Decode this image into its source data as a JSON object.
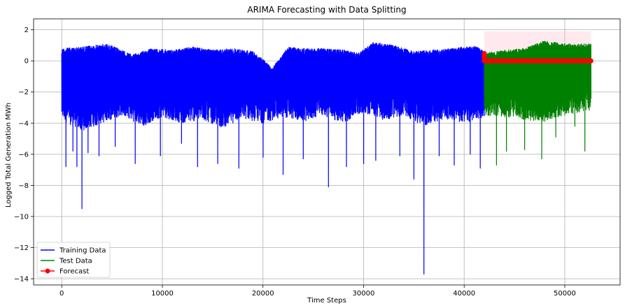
{
  "chart_data": {
    "type": "line",
    "title": "ARIMA Forecasting with Data Splitting",
    "xlabel": "Time Steps",
    "ylabel": "Logged Total Generation MWh",
    "xlim": [
      -2800,
      55500
    ],
    "ylim": [
      -14.4,
      2.7
    ],
    "x_ticks": [
      0,
      10000,
      20000,
      30000,
      40000,
      50000
    ],
    "y_ticks": [
      -14,
      -12,
      -10,
      -8,
      -6,
      -4,
      -2,
      0,
      2
    ],
    "grid": true,
    "legend_position": "lower-left",
    "series": [
      {
        "name": "Training Data",
        "color": "#0000ff",
        "x_range": [
          0,
          42000
        ],
        "upper_envelope": [
          [
            0,
            0.8
          ],
          [
            2000,
            0.9
          ],
          [
            4500,
            1.1
          ],
          [
            7000,
            0.4
          ],
          [
            9000,
            0.8
          ],
          [
            11000,
            0.7
          ],
          [
            13000,
            0.9
          ],
          [
            15000,
            0.7
          ],
          [
            17000,
            0.8
          ],
          [
            19000,
            0.6
          ],
          [
            21000,
            -0.4
          ],
          [
            22500,
            0.9
          ],
          [
            24000,
            0.8
          ],
          [
            26000,
            0.8
          ],
          [
            28000,
            0.7
          ],
          [
            29500,
            0.5
          ],
          [
            31000,
            1.2
          ],
          [
            33000,
            1.0
          ],
          [
            35000,
            0.6
          ],
          [
            37000,
            0.7
          ],
          [
            39000,
            0.8
          ],
          [
            41000,
            1.0
          ],
          [
            42000,
            0.6
          ]
        ],
        "lower_envelope": [
          [
            0,
            -3.8
          ],
          [
            2000,
            -4.5
          ],
          [
            4000,
            -4.0
          ],
          [
            6000,
            -3.5
          ],
          [
            8000,
            -4.2
          ],
          [
            10000,
            -3.6
          ],
          [
            12000,
            -4.0
          ],
          [
            14000,
            -3.8
          ],
          [
            16000,
            -4.3
          ],
          [
            18000,
            -3.7
          ],
          [
            20000,
            -4.0
          ],
          [
            22000,
            -3.6
          ],
          [
            24000,
            -3.9
          ],
          [
            26000,
            -3.5
          ],
          [
            28000,
            -4.0
          ],
          [
            30000,
            -3.3
          ],
          [
            32000,
            -3.8
          ],
          [
            34000,
            -3.5
          ],
          [
            36000,
            -4.2
          ],
          [
            38000,
            -3.7
          ],
          [
            40000,
            -4.0
          ],
          [
            42000,
            -3.6
          ]
        ],
        "spikes": [
          [
            400,
            -6.8
          ],
          [
            1100,
            -5.8
          ],
          [
            1500,
            -6.8
          ],
          [
            2000,
            -9.5
          ],
          [
            2600,
            -5.9
          ],
          [
            3700,
            -6.1
          ],
          [
            5300,
            -5.5
          ],
          [
            7300,
            -6.6
          ],
          [
            9800,
            -6.1
          ],
          [
            11900,
            -5.3
          ],
          [
            13500,
            -6.8
          ],
          [
            15500,
            -6.6
          ],
          [
            17600,
            -6.9
          ],
          [
            20000,
            -6.2
          ],
          [
            22000,
            -7.3
          ],
          [
            24000,
            -6.3
          ],
          [
            26500,
            -8.1
          ],
          [
            28300,
            -6.8
          ],
          [
            30000,
            -6.6
          ],
          [
            31200,
            -6.4
          ],
          [
            33600,
            -6.1
          ],
          [
            35000,
            -7.6
          ],
          [
            36000,
            -13.7
          ],
          [
            37500,
            -6.1
          ],
          [
            39000,
            -6.7
          ],
          [
            40600,
            -6.0
          ],
          [
            41600,
            -6.9
          ]
        ]
      },
      {
        "name": "Test Data",
        "color": "#008000",
        "x_range": [
          42000,
          52600
        ],
        "upper_envelope": [
          [
            42000,
            0.5
          ],
          [
            44000,
            0.7
          ],
          [
            46000,
            0.8
          ],
          [
            48000,
            1.3
          ],
          [
            50000,
            1.1
          ],
          [
            52600,
            1.1
          ]
        ],
        "lower_envelope": [
          [
            42000,
            -3.5
          ],
          [
            44000,
            -3.6
          ],
          [
            46000,
            -3.8
          ],
          [
            48000,
            -3.9
          ],
          [
            50000,
            -3.5
          ],
          [
            52600,
            -3.2
          ]
        ],
        "spikes": [
          [
            43200,
            -6.7
          ],
          [
            44200,
            -5.8
          ],
          [
            46000,
            -5.7
          ],
          [
            47700,
            -6.3
          ],
          [
            49100,
            -4.9
          ],
          [
            51000,
            -4.2
          ],
          [
            52000,
            -5.8
          ]
        ]
      },
      {
        "name": "Forecast",
        "color": "#ff0000",
        "marker": "circle",
        "x_range": [
          42000,
          52600
        ],
        "values": [
          [
            42000,
            0.5
          ],
          [
            42000,
            -0.05
          ],
          [
            52600,
            0.0
          ]
        ]
      }
    ],
    "confidence_band": {
      "color": "#ffb6c8",
      "x_range": [
        42000,
        52600
      ],
      "upper": 1.9,
      "lower": 0.5
    }
  }
}
